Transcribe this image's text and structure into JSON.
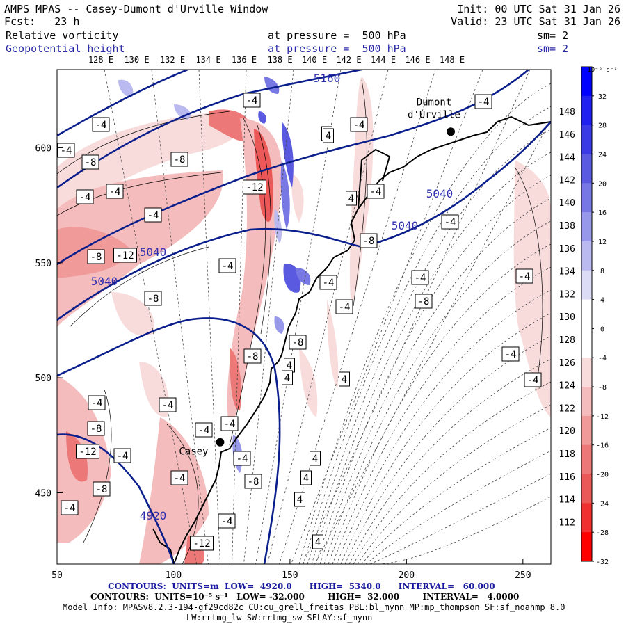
{
  "header": {
    "title": "AMPS MPAS -- Casey-Dumont d'Urville Window",
    "init": "Init: 00 UTC Sat 31 Jan 26",
    "fcst": "Fcst:   23 h",
    "valid": "Valid: 23 UTC Sat 31 Jan 26",
    "field1_name": "Relative vorticity",
    "field1_level": "at pressure =  500 hPa",
    "field1_sm": "sm= 2",
    "field2_name": "Geopotential height",
    "field2_level": "at pressure =  500 hPa",
    "field2_sm": "sm= 2"
  },
  "footer": {
    "line1": "CONTOURS:  UNITS=m  LOW=  4920.0      HIGH=  5340.0      INTERVAL=   60.000",
    "line2": "CONTOURS:  UNITS=10⁻⁵ s⁻¹   LOW= -32.000        HIGH=  32.000        INTERVAL=   4.0000",
    "line3": "Model Info: MPASv8.2.3-194-gf29cd82c CU:cu_grell_freitas PBL:bl_mynn MP:mp_thompson SF:sf_noahmp 8.0",
    "line4": "LW:rrtmg_lw SW:rrtmg_sw SFLAY:sf_mynn"
  },
  "colorbar": {
    "unit_label": "10⁻⁵ s⁻¹",
    "levels": [
      "32",
      "28",
      "24",
      "20",
      "16",
      "12",
      "8",
      "4",
      "0",
      "-4",
      "-8",
      "-12",
      "-16",
      "-20",
      "-24",
      "-28",
      "-32"
    ],
    "colors": [
      "#0000ff",
      "#2020f0",
      "#3a3ae6",
      "#5a5ae0",
      "#7878e4",
      "#9898ea",
      "#babaf0",
      "#dcdcf6",
      "#ffffff",
      "#ffffff",
      "#f8dcdc",
      "#f4bcbc",
      "#f09a9a",
      "#ec7878",
      "#ea5858",
      "#f03030",
      "#ff0000"
    ]
  },
  "map": {
    "lon_labels": [
      "128 E",
      "130 E",
      "132 E",
      "134 E",
      "136 E",
      "138 E",
      "140 E",
      "142 E",
      "144 E",
      "146 E",
      "148 E"
    ],
    "lat_axis_labels": [
      "148 E",
      "146 E",
      "144 E",
      "142 E",
      "140 E",
      "138 E",
      "136 E",
      "134 E",
      "132 E",
      "130 E",
      "128 E",
      "126 E",
      "124 E",
      "122 E",
      "120 E",
      "118 E",
      "116 E",
      "114 E",
      "112 E"
    ],
    "station_labels": [
      "Dumont d'Urville",
      "Casey"
    ],
    "height_contour_labels": [
      "5160",
      "5040",
      "5040",
      "5040",
      "5040",
      "4920"
    ],
    "vorticity_labels": [
      "-4",
      "-8",
      "-12",
      "4",
      "-4",
      "-8",
      "-4",
      "-4",
      "-8",
      "-4",
      "-12",
      "-4",
      "-8",
      "-8",
      "-4",
      "-4",
      "-4",
      "4",
      "4",
      "-4",
      "-4",
      "-8",
      "-4",
      "-4",
      "-8",
      "4",
      "-4",
      "-4",
      "-4",
      "-4",
      "-8",
      "4",
      "-4",
      "4",
      "-4",
      "-4",
      "-8",
      "-4",
      "4",
      "4",
      "-4",
      "-12",
      "-8",
      "-4",
      "-8",
      "-4",
      "-4",
      "4",
      "-12",
      "-4",
      "-4",
      "4"
    ]
  },
  "chart_data": {
    "type": "heatmap",
    "title": "AMPS MPAS -- Casey-Dumont d'Urville Window",
    "fields": [
      {
        "name": "Relative vorticity",
        "level": "500 hPa",
        "units": "10⁻⁵ s⁻¹",
        "low": -32.0,
        "high": 32.0,
        "interval": 4.0,
        "display": "shaded"
      },
      {
        "name": "Geopotential height",
        "level": "500 hPa",
        "units": "m",
        "low": 4920.0,
        "high": 5340.0,
        "interval": 60.0,
        "display": "contours",
        "contour_values_labeled": [
          5160,
          5040,
          4920
        ]
      }
    ],
    "x_axis": {
      "ticks": [
        50,
        100,
        150,
        200,
        250
      ],
      "xlim": [
        50,
        262
      ]
    },
    "y_axis": {
      "ticks": [
        450,
        500,
        550,
        600
      ],
      "ylim": [
        419,
        634
      ]
    },
    "colorbar_range": [
      -32,
      32
    ],
    "stations": [
      {
        "name": "Dumont d'Urville",
        "x": 219,
        "y": 607
      },
      {
        "name": "Casey",
        "x": 120,
        "y": 472
      }
    ]
  }
}
